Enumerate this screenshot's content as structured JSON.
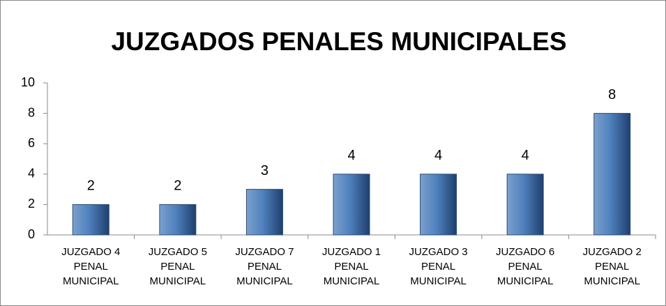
{
  "chart_data": {
    "type": "bar",
    "title": "JUZGADOS PENALES MUNICIPALES",
    "categories": [
      "JUZGADO 4 PENAL MUNICIPAL",
      "JUZGADO 5 PENAL MUNICIPAL",
      "JUZGADO 7 PENAL MUNICIPAL",
      "JUZGADO 1 PENAL MUNICIPAL",
      "JUZGADO 3 PENAL MUNICIPAL",
      "JUZGADO 6 PENAL MUNICIPAL",
      "JUZGADO 2 PENAL MUNICIPAL"
    ],
    "values": [
      2,
      2,
      3,
      4,
      4,
      4,
      8
    ],
    "color": "#4f81bd",
    "ylim": [
      0,
      10
    ],
    "yticks": [
      0,
      2,
      4,
      6,
      8,
      10
    ],
    "grid": false
  }
}
